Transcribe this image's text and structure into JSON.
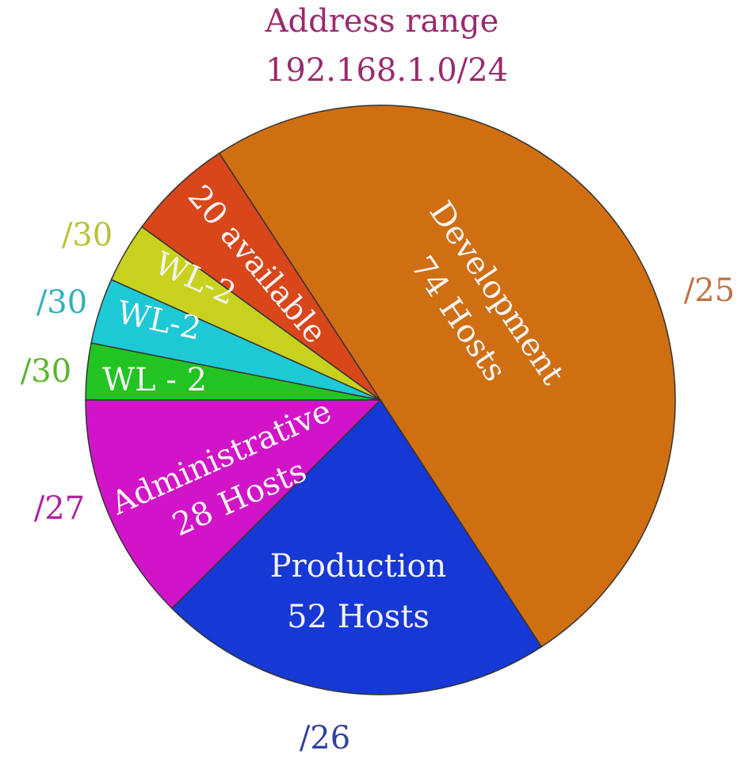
{
  "chart_data": {
    "type": "pie",
    "title": [
      "Address range",
      "192.168.1.0/24"
    ],
    "slices": [
      {
        "label": [
          "WL - 2"
        ],
        "prefix": "/30",
        "value": 3.1,
        "color": "#22c422",
        "prefix_color": "#5ab52a"
      },
      {
        "label": [
          "WL-2"
        ],
        "prefix": "/30",
        "value": 3.6,
        "color": "#1ec9d6",
        "prefix_color": "#30b0b8"
      },
      {
        "label": [
          "WL-2"
        ],
        "prefix": "/30",
        "value": 3.3,
        "color": "#c8d21e",
        "prefix_color": "#b8c23a"
      },
      {
        "label": [
          "20 available"
        ],
        "value": 5.8,
        "color": "#d8461a"
      },
      {
        "label": [
          "Development",
          "74 Hosts"
        ],
        "prefix": "/25",
        "value": 50,
        "color": "#d06e12",
        "prefix_color": "#c07040"
      },
      {
        "label": [
          "Production",
          "52 Hosts"
        ],
        "prefix": "/26",
        "value": 21.7,
        "color": "#1638d4",
        "prefix_color": "#3040a0"
      },
      {
        "label": [
          "Administrative",
          "28 Hosts"
        ],
        "prefix": "/27",
        "value": 12.5,
        "color": "#d214c8",
        "prefix_color": "#b020a0"
      }
    ]
  }
}
